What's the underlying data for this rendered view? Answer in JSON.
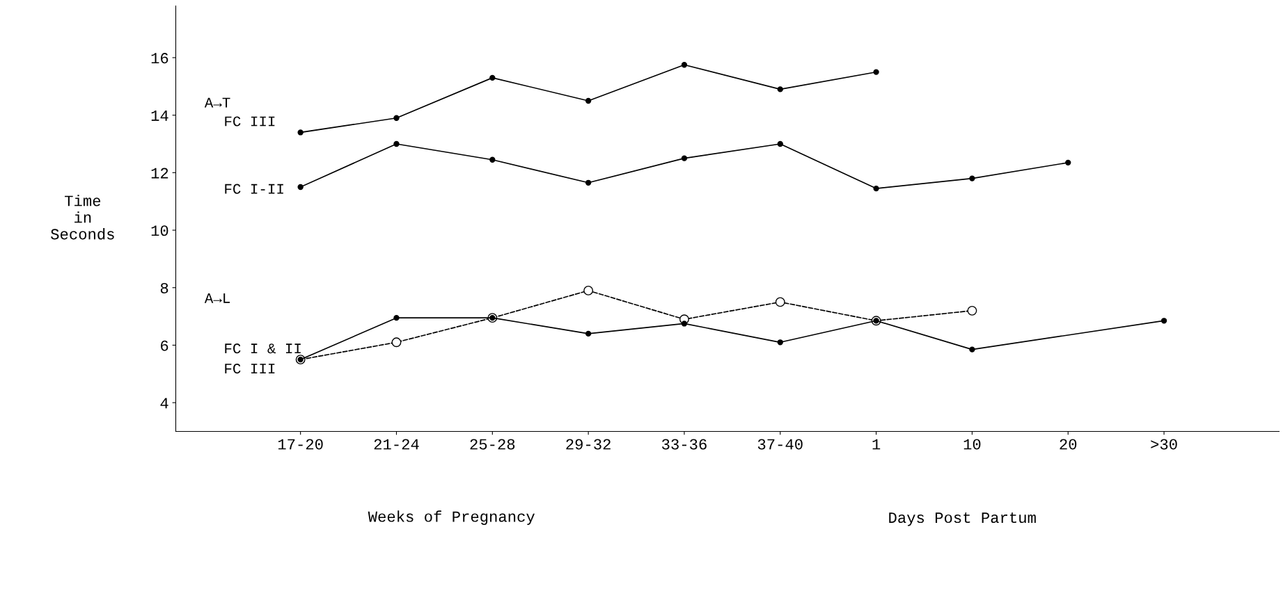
{
  "chart_data": {
    "type": "line",
    "xlabel": "Weeks of Pregnancy",
    "ylabel": "Time\nin\nSeconds",
    "categories": [
      "17-20",
      "21-24",
      "25-28",
      "29-32",
      "33-36",
      "37-40",
      "1",
      "10",
      "20",
      ">30"
    ],
    "series": [
      {
        "name": "FC III",
        "color": "#000000",
        "line_style": "solid",
        "values": [
          13.4,
          13.9,
          15.3,
          14.5,
          15.75,
          14.9,
          15.5,
          null,
          null,
          null
        ]
      },
      {
        "name": "FC I-II",
        "color": "#000000",
        "line_style": "solid",
        "values": [
          11.5,
          13.0,
          12.45,
          11.65,
          12.5,
          13.0,
          11.45,
          11.8,
          12.35,
          null
        ]
      },
      {
        "name": "FC I & II",
        "color": "#000000",
        "line_style": "solid",
        "values": [
          5.5,
          6.95,
          6.95,
          6.4,
          6.75,
          6.1,
          6.85,
          5.85,
          null,
          6.85
        ]
      },
      {
        "name": "FC III",
        "color": "#000000",
        "line_style": "dashed",
        "values": [
          5.5,
          6.1,
          6.95,
          7.9,
          6.9,
          7.5,
          6.85,
          7.2,
          null,
          null
        ]
      }
    ],
    "annotations": [
      "A→T",
      "A→L",
      "Days Post Partum"
    ],
    "ylim": [
      3,
      17.8
    ],
    "yticks": [
      4,
      6,
      8,
      10,
      12,
      14,
      16
    ],
    "marker": "circle",
    "grid": false,
    "legend": false
  }
}
